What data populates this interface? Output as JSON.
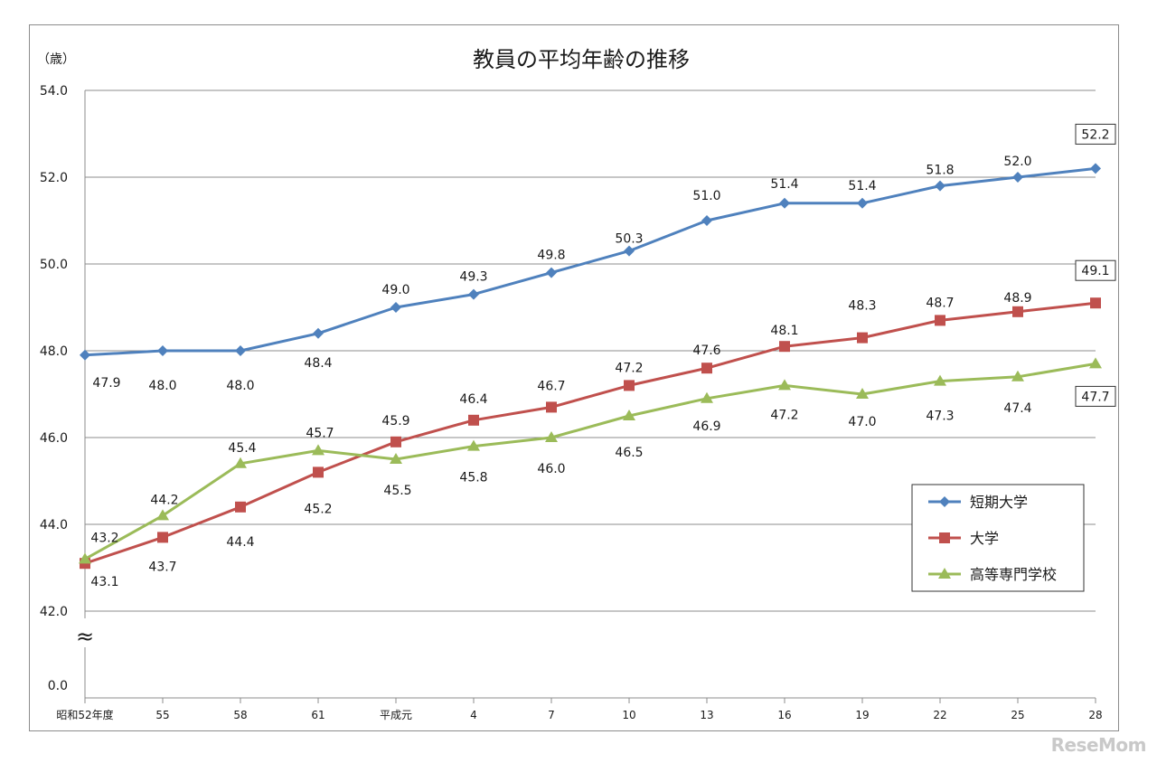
{
  "chart_data": {
    "type": "line",
    "title": "教員の平均年齢の推移",
    "ylabel": "（歳）",
    "categories": [
      "昭和52年度",
      "55",
      "58",
      "61",
      "平成元",
      "4",
      "7",
      "10",
      "13",
      "16",
      "19",
      "22",
      "25",
      "28"
    ],
    "y_ticks": [
      "54.0",
      "52.0",
      "50.0",
      "48.0",
      "46.0",
      "44.0",
      "42.0",
      "0.0"
    ],
    "ylim": [
      42,
      54
    ],
    "axis_break": true,
    "axis_break_symbol": "≈",
    "grid": true,
    "legend_position": "right",
    "series": [
      {
        "name": "短期大学",
        "color": "#4f81bd",
        "marker": "diamond",
        "values": [
          47.9,
          48.0,
          48.0,
          48.4,
          49.0,
          49.3,
          49.8,
          50.3,
          51.0,
          51.4,
          51.4,
          51.8,
          52.0,
          52.2
        ],
        "labels": [
          "47.9",
          "48.0",
          "48.0",
          "48.4",
          "49.0",
          "49.3",
          "49.8",
          "50.3",
          "51.0",
          "51.4",
          "51.4",
          "51.8",
          "52.0",
          "52.2"
        ]
      },
      {
        "name": "大学",
        "color": "#c0504d",
        "marker": "square",
        "values": [
          43.1,
          43.7,
          44.4,
          45.2,
          45.9,
          46.4,
          46.7,
          47.2,
          47.6,
          48.1,
          48.3,
          48.7,
          48.9,
          49.1
        ],
        "labels": [
          "43.1",
          "43.7",
          "44.4",
          "45.2",
          "45.9",
          "46.4",
          "46.7",
          "47.2",
          "47.6",
          "48.1",
          "48.3",
          "48.7",
          "48.9",
          "49.1"
        ]
      },
      {
        "name": "高等専門学校",
        "color": "#9bbb59",
        "marker": "triangle",
        "values": [
          43.2,
          44.2,
          45.4,
          45.7,
          45.5,
          45.8,
          46.0,
          46.5,
          46.9,
          47.2,
          47.0,
          47.3,
          47.4,
          47.7
        ],
        "labels": [
          "43.2",
          "44.2",
          "45.4",
          "45.7",
          "45.5",
          "45.8",
          "46.0",
          "46.5",
          "46.9",
          "47.2",
          "47.0",
          "47.3",
          "47.4",
          "47.7"
        ]
      }
    ]
  },
  "watermark": "ReseMom"
}
